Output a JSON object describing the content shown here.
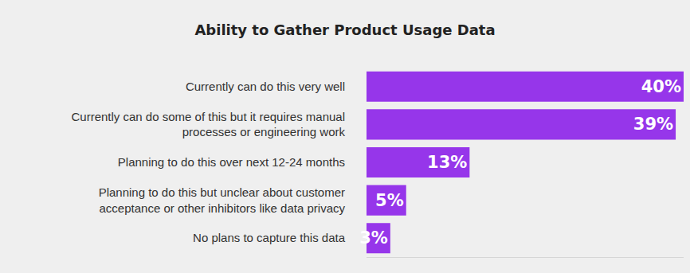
{
  "chart_data": {
    "type": "bar",
    "orientation": "horizontal",
    "title": "Ability to Gather Product Usage Data",
    "categories": [
      "Currently can do this very well",
      "Currently can do some of this but it requires manual processes or engineering work",
      "Planning to do this over next 12-24 months",
      "Planning to do this but unclear about customer acceptance or other inhibitors like data privacy",
      "No plans to capture this data"
    ],
    "values": [
      40,
      39,
      13,
      5,
      3
    ],
    "value_labels": [
      "40%",
      "39%",
      "13%",
      "5%",
      "3%"
    ],
    "data_labels": true,
    "color": "#9636ea",
    "xlim": [
      0,
      40
    ],
    "xticks": [],
    "tick_labels": "y",
    "grid": false
  }
}
